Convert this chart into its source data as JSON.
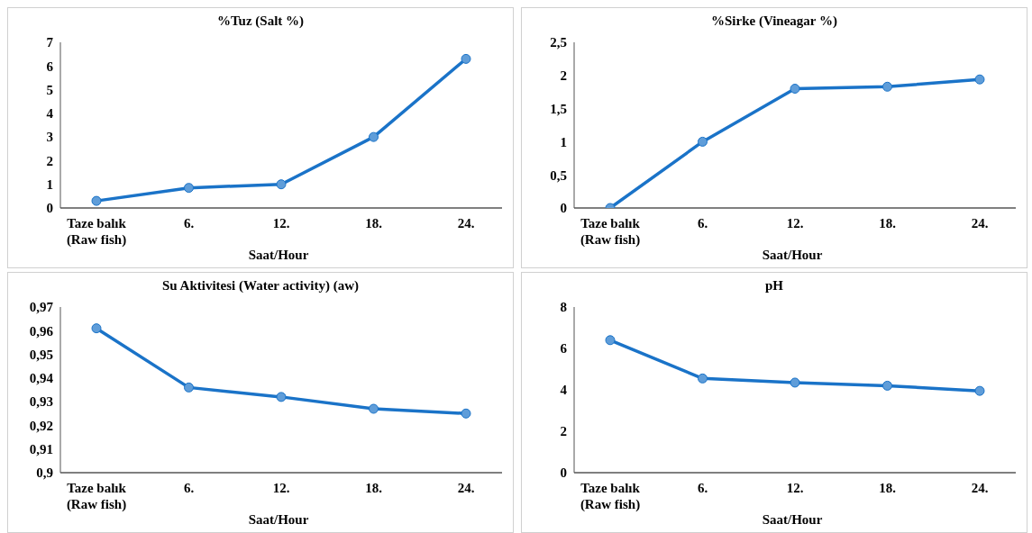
{
  "chart_data": [
    {
      "type": "line",
      "title": "%Tuz (Salt %)",
      "xlabel": "Saat/Hour",
      "categories": [
        "Taze balık\n(Raw fish)",
        "6.",
        "12.",
        "18.",
        "24."
      ],
      "series": [
        {
          "color": "#1a73c8",
          "values": [
            0.3,
            0.85,
            1.0,
            3.0,
            6.3
          ]
        }
      ],
      "ylim": [
        0,
        7
      ],
      "yticks": [
        0,
        1,
        2,
        3,
        4,
        5,
        6,
        7
      ],
      "marker": "circle",
      "grid": false
    },
    {
      "type": "line",
      "title": "%Sirke (Vineagar %)",
      "xlabel": "Saat/Hour",
      "categories": [
        "Taze balık\n(Raw fish)",
        "6.",
        "12.",
        "18.",
        "24."
      ],
      "series": [
        {
          "color": "#1a73c8",
          "values": [
            0,
            1.0,
            1.8,
            1.83,
            1.94
          ]
        }
      ],
      "ylim": [
        0,
        2.5
      ],
      "yticks": [
        0,
        {
          "value": 0.5,
          "label": "0,5"
        },
        1,
        {
          "value": 1.5,
          "label": "1,5"
        },
        2,
        {
          "value": 2.5,
          "label": "2,5"
        }
      ],
      "marker": "circle",
      "grid": false
    },
    {
      "type": "line",
      "title": "Su Aktivitesi (Water activity) (aw)",
      "xlabel": "Saat/Hour",
      "categories": [
        "Taze balık\n(Raw fish)",
        "6.",
        "12.",
        "18.",
        "24."
      ],
      "series": [
        {
          "color": "#1a73c8",
          "values": [
            0.961,
            0.936,
            0.932,
            0.927,
            0.925
          ]
        }
      ],
      "ylim": [
        0.9,
        0.97
      ],
      "yticks": [
        {
          "value": 0.9,
          "label": "0,9"
        },
        {
          "value": 0.91,
          "label": "0,91"
        },
        {
          "value": 0.92,
          "label": "0,92"
        },
        {
          "value": 0.93,
          "label": "0,93"
        },
        {
          "value": 0.94,
          "label": "0,94"
        },
        {
          "value": 0.95,
          "label": "0,95"
        },
        {
          "value": 0.96,
          "label": "0,96"
        },
        {
          "value": 0.97,
          "label": "0,97"
        }
      ],
      "marker": "circle",
      "grid": false
    },
    {
      "type": "line",
      "title": "pH",
      "xlabel": "Saat/Hour",
      "categories": [
        "Taze balık\n(Raw fish)",
        "6.",
        "12.",
        "18.",
        "24."
      ],
      "series": [
        {
          "color": "#1a73c8",
          "values": [
            6.4,
            4.55,
            4.35,
            4.2,
            3.95
          ]
        }
      ],
      "ylim": [
        0,
        8
      ],
      "yticks": [
        0,
        2,
        4,
        6,
        8
      ],
      "marker": "circle",
      "grid": false
    }
  ]
}
